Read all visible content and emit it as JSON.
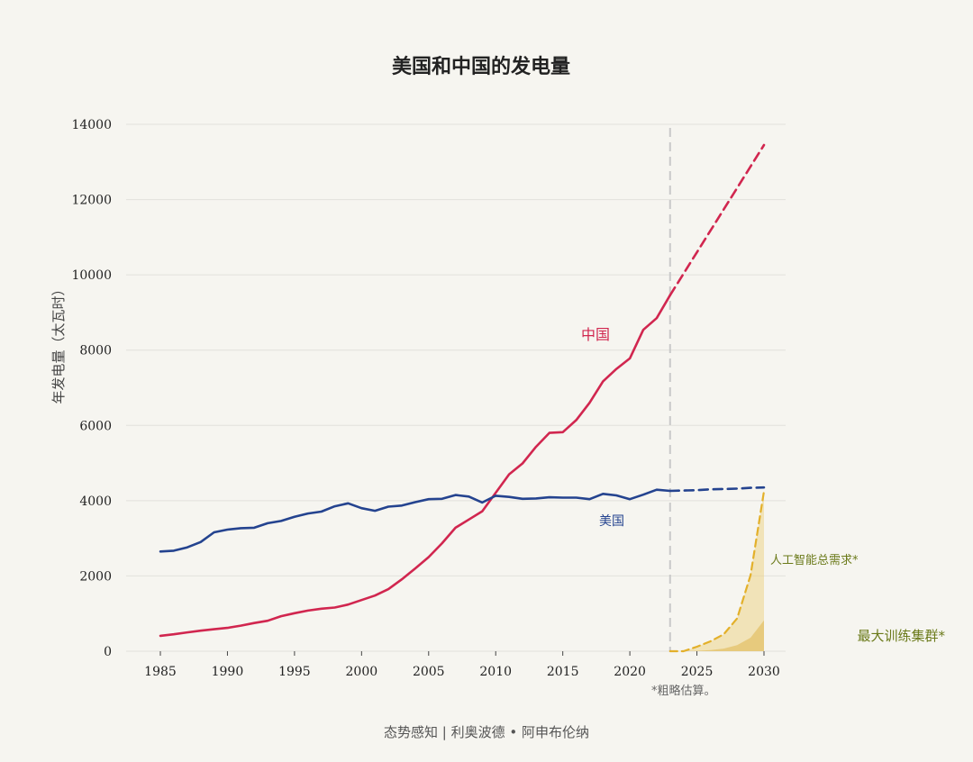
{
  "chart_data": {
    "type": "line",
    "title": "美国和中国的发电量",
    "xlabel": "",
    "ylabel": "年发电量（太瓦时）",
    "xlim": [
      1983.5,
      2031.5
    ],
    "ylim": [
      0,
      14000
    ],
    "x_ticks": [
      1985,
      1990,
      1995,
      2000,
      2005,
      2010,
      2015,
      2020,
      2025,
      2030
    ],
    "y_ticks": [
      0,
      2000,
      4000,
      6000,
      8000,
      10000,
      12000,
      14000
    ],
    "grid": true,
    "colors": {
      "china": "#d1264f",
      "usa": "#24438f",
      "ai": "#e3b02a",
      "ai_fill": "#ecd48a",
      "cluster_fill": "#e3c26a",
      "ann_green": "#6b7a1a",
      "divider": "#c9c9c9"
    },
    "divider_x": 2023,
    "series": [
      {
        "name": "中国",
        "key": "china",
        "style": "solid",
        "x": [
          1985,
          1986,
          1987,
          1988,
          1989,
          1990,
          1991,
          1992,
          1993,
          1994,
          1995,
          1996,
          1997,
          1998,
          1999,
          2000,
          2001,
          2002,
          2003,
          2004,
          2005,
          2006,
          2007,
          2008,
          2009,
          2010,
          2011,
          2012,
          2013,
          2014,
          2015,
          2016,
          2017,
          2018,
          2019,
          2020,
          2021,
          2022,
          2023
        ],
        "values": [
          410,
          450,
          500,
          545,
          585,
          620,
          680,
          750,
          810,
          930,
          1010,
          1080,
          1130,
          1160,
          1240,
          1360,
          1480,
          1650,
          1910,
          2200,
          2500,
          2870,
          3280,
          3500,
          3720,
          4210,
          4700,
          4990,
          5430,
          5800,
          5820,
          6140,
          6600,
          7170,
          7500,
          7780,
          8540,
          8850,
          9460
        ]
      },
      {
        "name": "中国-预测",
        "key": "china",
        "style": "dashed",
        "x": [
          2023,
          2030
        ],
        "values": [
          9460,
          13450
        ]
      },
      {
        "name": "美国",
        "key": "usa",
        "style": "solid",
        "x": [
          1985,
          1986,
          1987,
          1988,
          1989,
          1990,
          1991,
          1992,
          1993,
          1994,
          1995,
          1996,
          1997,
          1998,
          1999,
          2000,
          2001,
          2002,
          2003,
          2004,
          2005,
          2006,
          2007,
          2008,
          2009,
          2010,
          2011,
          2012,
          2013,
          2014,
          2015,
          2016,
          2017,
          2018,
          2019,
          2020,
          2021,
          2022,
          2023
        ],
        "values": [
          2650,
          2670,
          2760,
          2900,
          3160,
          3230,
          3270,
          3280,
          3400,
          3460,
          3570,
          3660,
          3710,
          3850,
          3930,
          3800,
          3730,
          3840,
          3870,
          3960,
          4040,
          4050,
          4150,
          4110,
          3950,
          4130,
          4100,
          4050,
          4060,
          4090,
          4080,
          4080,
          4040,
          4180,
          4140,
          4040,
          4160,
          4290,
          4260
        ]
      },
      {
        "name": "美国-预测",
        "key": "usa",
        "style": "dashed",
        "x": [
          2023,
          2024,
          2025,
          2026,
          2027,
          2028,
          2029,
          2030
        ],
        "values": [
          4260,
          4270,
          4280,
          4300,
          4310,
          4320,
          4340,
          4350
        ]
      },
      {
        "name": "人工智能总需求*",
        "key": "ai",
        "style": "dashed",
        "x": [
          2023,
          2024,
          2025,
          2026,
          2027,
          2028,
          2029,
          2030
        ],
        "values": [
          0,
          0,
          120,
          260,
          450,
          870,
          2020,
          4250
        ]
      },
      {
        "name": "最大训练集群*",
        "key": "cluster",
        "style": "area",
        "x": [
          2023,
          2024,
          2025,
          2026,
          2027,
          2028,
          2029,
          2030
        ],
        "values": [
          0,
          0,
          10,
          30,
          70,
          160,
          360,
          820
        ]
      }
    ],
    "annotations": [
      {
        "text": "中国",
        "key": "china"
      },
      {
        "text": "美国",
        "key": "usa"
      },
      {
        "text": "人工智能总需求*",
        "key": "ai"
      },
      {
        "text": "最大训练集群*",
        "key": "cluster"
      },
      {
        "text": "*粗略估算。",
        "key": "note"
      }
    ]
  },
  "footer": "态势感知 | 利奥波德 • 阿申布伦纳"
}
